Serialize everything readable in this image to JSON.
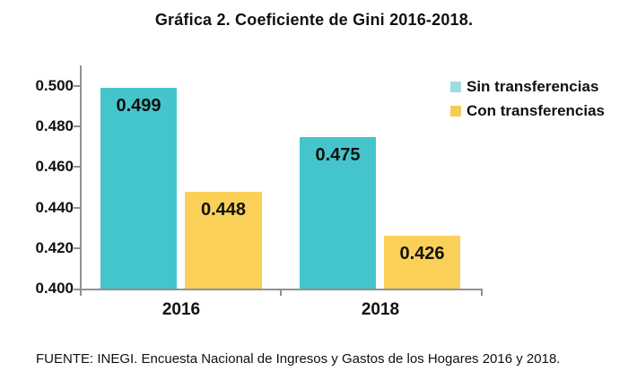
{
  "title": "Gráfica 2. Coeficiente de Gini 2016-2018.",
  "footer": "FUENTE: INEGI. Encuesta Nacional de Ingresos y Gastos de los Hogares 2016 y 2018.",
  "colors": {
    "teal_bar": "#44c5cb",
    "yellow_bar": "#fbd058",
    "axis_gray": "#919191",
    "text": "#111111"
  },
  "legend": {
    "items": [
      {
        "label": "Sin transferencias",
        "color": "#9edce0"
      },
      {
        "label": "Con transferencias",
        "color": "#f6ca58"
      }
    ]
  },
  "y_axis": {
    "ticks": [
      "0.500",
      "0.480",
      "0.460",
      "0.440",
      "0.420",
      "0.400"
    ]
  },
  "x_axis": {
    "categories": [
      "2016",
      "2018"
    ]
  },
  "chart_data": {
    "type": "bar",
    "title": "Gráfica 2. Coeficiente de Gini 2016-2018.",
    "categories": [
      "2016",
      "2018"
    ],
    "series": [
      {
        "name": "Sin transferencias",
        "color": "#44c5cb",
        "values": [
          0.499,
          0.475
        ],
        "labels": [
          "0.499",
          "0.475"
        ]
      },
      {
        "name": "Con transferencias",
        "color": "#fbd058",
        "values": [
          0.448,
          0.426
        ],
        "labels": [
          "0.448",
          "0.426"
        ]
      }
    ],
    "xlabel": "",
    "ylabel": "",
    "ylim": [
      0.4,
      0.5
    ],
    "y_ticks": [
      0.4,
      0.42,
      0.44,
      0.46,
      0.48,
      0.5
    ],
    "grid": false,
    "legend_position": "top-right",
    "value_labels": "inside-top",
    "source": "FUENTE: INEGI. Encuesta Nacional de Ingresos y Gastos de los Hogares 2016 y 2018."
  }
}
